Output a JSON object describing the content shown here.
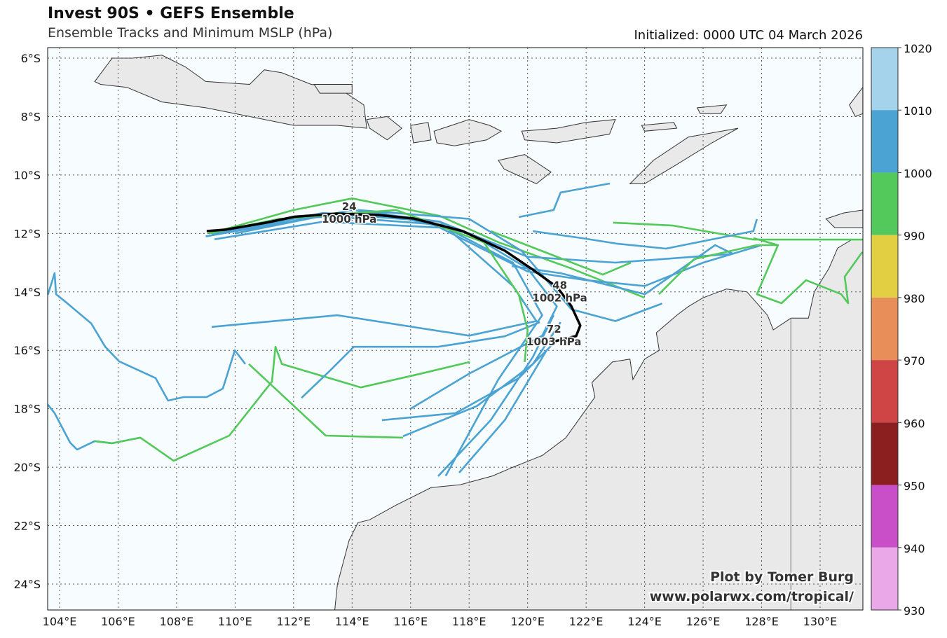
{
  "header": {
    "title": "Invest 90S • GEFS Ensemble",
    "subtitle": "Ensemble Tracks and Minimum MSLP (hPa)",
    "initialized": "Initialized: 0000 UTC 04 March 2026"
  },
  "credit": {
    "line1": "Plot by Tomer Burg",
    "line2": "www.polarwx.com/tropical/"
  },
  "colors": {
    "ocean": "#f7fcfe",
    "land": "#e9e9e9",
    "coast": "#333333",
    "mean_track": "#000000"
  },
  "chart_data": {
    "type": "map-tracks",
    "lon_range": [
      103.6,
      131.46
    ],
    "lat_range_south": [
      5.64,
      24.88
    ],
    "lon_ticks": [
      "104°E",
      "106°E",
      "108°E",
      "110°E",
      "112°E",
      "114°E",
      "116°E",
      "118°E",
      "120°E",
      "122°E",
      "124°E",
      "126°E",
      "128°E",
      "130°E"
    ],
    "lon_tick_values": [
      104,
      106,
      108,
      110,
      112,
      114,
      116,
      118,
      120,
      122,
      124,
      126,
      128,
      130
    ],
    "lat_ticks": [
      "6°S",
      "8°S",
      "10°S",
      "12°S",
      "14°S",
      "16°S",
      "18°S",
      "20°S",
      "22°S",
      "24°S"
    ],
    "lat_tick_values": [
      6,
      8,
      10,
      12,
      14,
      16,
      18,
      20,
      22,
      24
    ],
    "colorbar": {
      "labels": [
        "1020",
        "1010",
        "1000",
        "990",
        "980",
        "970",
        "960",
        "950",
        "940",
        "930"
      ],
      "bins": [
        {
          "range": [
            1010,
            1020
          ],
          "color": "#a6d3ec"
        },
        {
          "range": [
            1000,
            1010
          ],
          "color": "#4aa3d3"
        },
        {
          "range": [
            990,
            1000
          ],
          "color": "#52c95a"
        },
        {
          "range": [
            980,
            990
          ],
          "color": "#e3d042"
        },
        {
          "range": [
            970,
            980
          ],
          "color": "#e88e58"
        },
        {
          "range": [
            960,
            970
          ],
          "color": "#cf4444"
        },
        {
          "range": [
            950,
            960
          ],
          "color": "#8b1e1e"
        },
        {
          "range": [
            940,
            950
          ],
          "color": "#c94fc9"
        },
        {
          "range": [
            930,
            940
          ],
          "color": "#eaa8e8"
        }
      ]
    },
    "mean_track": {
      "points": [
        [
          109.03,
          11.92
        ],
        [
          109.68,
          11.87
        ],
        [
          111.07,
          11.63
        ],
        [
          112.03,
          11.43
        ],
        [
          113.47,
          11.32
        ],
        [
          114.9,
          11.37
        ],
        [
          116.1,
          11.49
        ],
        [
          117.78,
          11.92
        ],
        [
          119.22,
          12.59
        ],
        [
          120.18,
          13.24
        ],
        [
          121.01,
          13.84
        ],
        [
          121.49,
          14.48
        ],
        [
          121.8,
          15.15
        ],
        [
          121.66,
          15.51
        ],
        [
          120.89,
          15.7
        ],
        [
          119.94,
          15.8
        ]
      ],
      "labels": [
        {
          "hour": "24",
          "mslp": "1000 hPa",
          "lon": 113.9,
          "lat": 11.2
        },
        {
          "hour": "48",
          "mslp": "1002 hPa",
          "lon": 121.1,
          "lat": 13.9
        },
        {
          "hour": "72",
          "mslp": "1003 hPa",
          "lon": 120.9,
          "lat": 15.4
        }
      ]
    },
    "ensemble_tracks": [
      {
        "color": "#4aa3d3",
        "points": [
          [
            109.2,
            12.0
          ],
          [
            112,
            11.5
          ],
          [
            115,
            11.3
          ],
          [
            118,
            12.0
          ],
          [
            120,
            13.2
          ],
          [
            121,
            14.5
          ],
          [
            120.5,
            15.5
          ],
          [
            118,
            16.8
          ],
          [
            116,
            18.0
          ]
        ]
      },
      {
        "color": "#4aa3d3",
        "points": [
          [
            109,
            12.1
          ],
          [
            113,
            11.4
          ],
          [
            117,
            11.7
          ],
          [
            119.5,
            13.0
          ],
          [
            120.5,
            14.8
          ],
          [
            119,
            17.0
          ],
          [
            117.2,
            20.3
          ]
        ]
      },
      {
        "color": "#52c95a",
        "points": [
          [
            109.5,
            11.9
          ],
          [
            112,
            11.2
          ],
          [
            114,
            10.8
          ],
          [
            117,
            11.4
          ],
          [
            119,
            12.3
          ],
          [
            121.5,
            13.2
          ],
          [
            124,
            14.2
          ]
        ]
      },
      {
        "color": "#4aa3d3",
        "points": [
          [
            109,
            12.1
          ],
          [
            113,
            11.3
          ],
          [
            117,
            11.6
          ],
          [
            120,
            12.8
          ],
          [
            123,
            13.0
          ],
          [
            127,
            12.7
          ]
        ]
      },
      {
        "color": "#4aa3d3",
        "points": [
          [
            109.3,
            12.2
          ],
          [
            113,
            11.6
          ],
          [
            117,
            11.8
          ],
          [
            120,
            13.3
          ],
          [
            122,
            13.6
          ],
          [
            124,
            13.8
          ],
          [
            126,
            13.0
          ],
          [
            128,
            12.4
          ]
        ]
      },
      {
        "color": "#4aa3d3",
        "points": [
          [
            110,
            12.0
          ],
          [
            114,
            11.2
          ],
          [
            117,
            11.6
          ],
          [
            119.5,
            13.8
          ],
          [
            120.3,
            15.0
          ],
          [
            118,
            15.5
          ],
          [
            113.5,
            14.8
          ],
          [
            109.2,
            15.2
          ]
        ]
      },
      {
        "color": "#4aa3d3",
        "points": [
          [
            110.35,
            16.47
          ],
          [
            109.99,
            16.0
          ],
          [
            109.58,
            17.31
          ],
          [
            109.03,
            17.6
          ],
          [
            108.24,
            17.6
          ],
          [
            107.71,
            17.72
          ],
          [
            107.28,
            16.95
          ],
          [
            106.04,
            16.38
          ],
          [
            105.56,
            15.88
          ],
          [
            105.08,
            15.08
          ],
          [
            104.24,
            14.37
          ],
          [
            103.88,
            14.08
          ],
          [
            103.83,
            13.36
          ],
          [
            103.6,
            14.1
          ]
        ]
      },
      {
        "color": "#4aa3d3",
        "points": [
          [
            103.6,
            17.86
          ],
          [
            103.83,
            18.15
          ],
          [
            104.36,
            19.16
          ],
          [
            104.6,
            19.4
          ],
          [
            105.2,
            19.11
          ],
          [
            105.8,
            19.18
          ],
          [
            106.76,
            18.99
          ]
        ]
      },
      {
        "color": "#52c95a",
        "points": [
          [
            105.2,
            19.11
          ],
          [
            105.8,
            19.18
          ],
          [
            106.76,
            18.99
          ],
          [
            107.9,
            19.78
          ],
          [
            109.8,
            18.92
          ],
          [
            111.26,
            17.07
          ],
          [
            111.38,
            15.88
          ],
          [
            111.6,
            16.47
          ],
          [
            114.3,
            17.27
          ],
          [
            116.22,
            16.83
          ],
          [
            118.02,
            16.4
          ]
        ]
      },
      {
        "color": "#52c95a",
        "points": [
          [
            110.47,
            16.47
          ],
          [
            113.1,
            18.92
          ],
          [
            115.74,
            18.99
          ]
        ]
      },
      {
        "color": "#4aa3d3",
        "points": [
          [
            112.27,
            17.63
          ],
          [
            113.23,
            16.71
          ],
          [
            114.06,
            15.88
          ],
          [
            116.94,
            15.88
          ],
          [
            119.22,
            15.52
          ],
          [
            120.42,
            15.04
          ]
        ]
      },
      {
        "color": "#4aa3d3",
        "points": [
          [
            115.02,
            18.39
          ],
          [
            117.54,
            18.15
          ],
          [
            119.7,
            16.95
          ],
          [
            120.89,
            15.76
          ]
        ]
      },
      {
        "color": "#4aa3d3",
        "points": [
          [
            115.74,
            18.94
          ],
          [
            118.26,
            17.91
          ],
          [
            120.18,
            16.47
          ],
          [
            121.13,
            15.04
          ]
        ]
      },
      {
        "color": "#4aa3d3",
        "points": [
          [
            116.94,
            20.31
          ],
          [
            118.74,
            18.39
          ],
          [
            120.18,
            16.23
          ],
          [
            120.89,
            14.8
          ]
        ]
      },
      {
        "color": "#4aa3d3",
        "points": [
          [
            117.66,
            20.19
          ],
          [
            119.22,
            18.39
          ],
          [
            120.65,
            16.0
          ]
        ]
      },
      {
        "color": "#52c95a",
        "points": [
          [
            127.72,
            12.16
          ],
          [
            128.56,
            12.4
          ],
          [
            127.84,
            14.08
          ],
          [
            128.68,
            14.39
          ],
          [
            129.52,
            13.6
          ],
          [
            130.72,
            14.08
          ],
          [
            130.96,
            14.39
          ],
          [
            130.84,
            13.48
          ],
          [
            131.44,
            12.64
          ]
        ]
      },
      {
        "color": "#52c95a",
        "points": [
          [
            122.93,
            11.63
          ],
          [
            124.97,
            11.73
          ],
          [
            127.72,
            12.21
          ],
          [
            131.44,
            12.21
          ]
        ]
      },
      {
        "color": "#4aa3d3",
        "points": [
          [
            119.7,
            11.44
          ],
          [
            120.89,
            11.2
          ],
          [
            121.13,
            10.6
          ],
          [
            122.81,
            10.29
          ]
        ]
      },
      {
        "color": "#4aa3d3",
        "points": [
          [
            120.18,
            11.92
          ],
          [
            121.85,
            12.16
          ],
          [
            123.05,
            12.35
          ],
          [
            124.73,
            12.52
          ],
          [
            127.72,
            11.92
          ],
          [
            127.84,
            11.51
          ]
        ]
      },
      {
        "color": "#52c95a",
        "points": [
          [
            118.74,
            11.92
          ],
          [
            122.57,
            13.41
          ],
          [
            123.53,
            13.0
          ]
        ]
      },
      {
        "color": "#4aa3d3",
        "points": [
          [
            119.46,
            13.12
          ],
          [
            121.13,
            13.36
          ],
          [
            124.01,
            14.08
          ],
          [
            126.41,
            12.4
          ],
          [
            127.0,
            12.69
          ]
        ]
      },
      {
        "color": "#52c95a",
        "points": [
          [
            124.49,
            14.08
          ],
          [
            125.69,
            12.88
          ],
          [
            127.84,
            12.4
          ],
          [
            128.56,
            12.4
          ]
        ]
      },
      {
        "color": "#4aa3d3",
        "points": [
          [
            114.2,
            11.2
          ],
          [
            118.0,
            11.5
          ],
          [
            119.8,
            12.6
          ],
          [
            121.5,
            14.6
          ],
          [
            123.0,
            15.0
          ],
          [
            124.6,
            14.4
          ]
        ]
      },
      {
        "color": "#52c95a",
        "points": [
          [
            109.1,
            12.0
          ],
          [
            111.5,
            11.5
          ],
          [
            115.5,
            11.2
          ],
          [
            118.5,
            12.3
          ],
          [
            119.7,
            14.1
          ],
          [
            120.0,
            15.3
          ],
          [
            119.9,
            16.4
          ]
        ]
      }
    ]
  }
}
